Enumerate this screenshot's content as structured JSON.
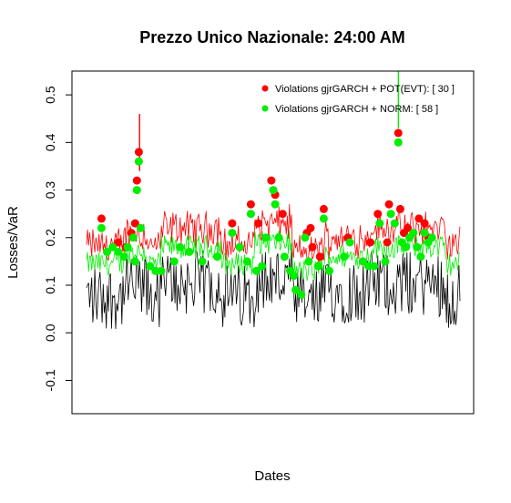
{
  "chart_data": {
    "type": "line",
    "title": "Prezzo Unico Nazionale: 24:00 AM",
    "xlabel": "Dates",
    "ylabel": "Losses/VaR",
    "ylim": [
      -0.17,
      0.55
    ],
    "yticks": [
      -0.1,
      0.0,
      0.1,
      0.2,
      0.3,
      0.4,
      0.5
    ],
    "ytick_labels": [
      "-0.1",
      "0.0",
      "0.1",
      "0.2",
      "0.3",
      "0.4",
      "0.5"
    ],
    "xticks_shown": false,
    "n_observations": 360,
    "legend_position": "top-right",
    "colors": {
      "losses": "#000000",
      "pot_evt": "#ff0000",
      "norm": "#00ee00"
    },
    "series": [
      {
        "name": "Violations gjrGARCH + POT(EVT): [ 30 ]",
        "kind": "var_line",
        "color": "#ff0000"
      },
      {
        "name": "Violations gjrGARCH + NORM: [ 58 ]",
        "kind": "var_line",
        "color": "#00ee00"
      }
    ],
    "violations": {
      "pot_evt": [
        [
          0.04,
          0.24
        ],
        [
          0.085,
          0.19
        ],
        [
          0.105,
          0.18
        ],
        [
          0.12,
          0.21
        ],
        [
          0.13,
          0.23
        ],
        [
          0.135,
          0.32
        ],
        [
          0.14,
          0.38
        ],
        [
          0.39,
          0.23
        ],
        [
          0.44,
          0.27
        ],
        [
          0.46,
          0.23
        ],
        [
          0.495,
          0.32
        ],
        [
          0.505,
          0.29
        ],
        [
          0.525,
          0.25
        ],
        [
          0.59,
          0.21
        ],
        [
          0.6,
          0.22
        ],
        [
          0.605,
          0.18
        ],
        [
          0.625,
          0.16
        ],
        [
          0.635,
          0.26
        ],
        [
          0.7,
          0.2
        ],
        [
          0.76,
          0.19
        ],
        [
          0.78,
          0.25
        ],
        [
          0.805,
          0.19
        ],
        [
          0.81,
          0.27
        ],
        [
          0.835,
          0.42
        ],
        [
          0.84,
          0.26
        ],
        [
          0.85,
          0.21
        ],
        [
          0.86,
          0.22
        ],
        [
          0.89,
          0.24
        ],
        [
          0.905,
          0.23
        ],
        [
          0.915,
          0.2
        ]
      ],
      "norm": [
        [
          0.04,
          0.22
        ],
        [
          0.055,
          0.17
        ],
        [
          0.07,
          0.18
        ],
        [
          0.085,
          0.17
        ],
        [
          0.1,
          0.16
        ],
        [
          0.11,
          0.18
        ],
        [
          0.125,
          0.2
        ],
        [
          0.13,
          0.15
        ],
        [
          0.135,
          0.3
        ],
        [
          0.14,
          0.36
        ],
        [
          0.145,
          0.22
        ],
        [
          0.17,
          0.14
        ],
        [
          0.185,
          0.13
        ],
        [
          0.2,
          0.13
        ],
        [
          0.235,
          0.15
        ],
        [
          0.25,
          0.18
        ],
        [
          0.275,
          0.17
        ],
        [
          0.31,
          0.15
        ],
        [
          0.35,
          0.16
        ],
        [
          0.39,
          0.21
        ],
        [
          0.41,
          0.18
        ],
        [
          0.43,
          0.15
        ],
        [
          0.44,
          0.25
        ],
        [
          0.455,
          0.13
        ],
        [
          0.47,
          0.14
        ],
        [
          0.48,
          0.2
        ],
        [
          0.5,
          0.3
        ],
        [
          0.505,
          0.27
        ],
        [
          0.515,
          0.2
        ],
        [
          0.53,
          0.16
        ],
        [
          0.545,
          0.13
        ],
        [
          0.555,
          0.12
        ],
        [
          0.56,
          0.09
        ],
        [
          0.575,
          0.08
        ],
        [
          0.585,
          0.2
        ],
        [
          0.595,
          0.15
        ],
        [
          0.62,
          0.14
        ],
        [
          0.635,
          0.24
        ],
        [
          0.65,
          0.13
        ],
        [
          0.69,
          0.16
        ],
        [
          0.705,
          0.19
        ],
        [
          0.74,
          0.15
        ],
        [
          0.755,
          0.14
        ],
        [
          0.77,
          0.14
        ],
        [
          0.785,
          0.23
        ],
        [
          0.8,
          0.15
        ],
        [
          0.815,
          0.25
        ],
        [
          0.825,
          0.23
        ],
        [
          0.835,
          0.4
        ],
        [
          0.845,
          0.19
        ],
        [
          0.855,
          0.18
        ],
        [
          0.865,
          0.2
        ],
        [
          0.875,
          0.21
        ],
        [
          0.885,
          0.18
        ],
        [
          0.895,
          0.16
        ],
        [
          0.905,
          0.21
        ],
        [
          0.915,
          0.19
        ],
        [
          0.925,
          0.2
        ]
      ]
    }
  }
}
